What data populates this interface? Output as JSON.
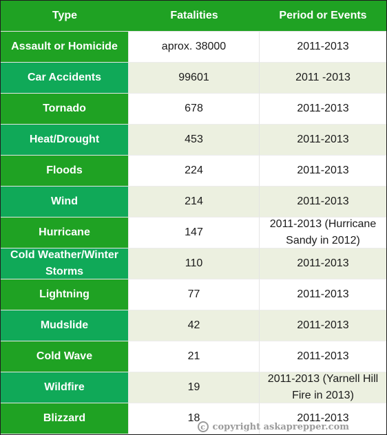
{
  "table": {
    "headers": [
      "Type",
      "Fatalities",
      "Period or Events"
    ],
    "rows": [
      {
        "type": "Assault or Homicide",
        "fatalities": "aprox. 38000",
        "period": "2011-2013"
      },
      {
        "type": "Car Accidents",
        "fatalities": "99601",
        "period": "2011 -2013"
      },
      {
        "type": "Tornado",
        "fatalities": "678",
        "period": "2011-2013"
      },
      {
        "type": "Heat/Drought",
        "fatalities": "453",
        "period": "2011-2013"
      },
      {
        "type": "Floods",
        "fatalities": "224",
        "period": "2011-2013"
      },
      {
        "type": "Wind",
        "fatalities": "214",
        "period": "2011-2013"
      },
      {
        "type": "Hurricane",
        "fatalities": "147",
        "period": "2011-2013 (Hurricane Sandy in 2012)"
      },
      {
        "type": "Cold Weather/Winter Storms",
        "fatalities": "110",
        "period": "2011-2013"
      },
      {
        "type": "Lightning",
        "fatalities": "77",
        "period": "2011-2013"
      },
      {
        "type": "Mudslide",
        "fatalities": "42",
        "period": "2011-2013"
      },
      {
        "type": "Cold Wave",
        "fatalities": "21",
        "period": "2011-2013"
      },
      {
        "type": "Wildfire",
        "fatalities": "19",
        "period": "2011-2013 (Yarnell Hill Fire in 2013)"
      },
      {
        "type": "Blizzard",
        "fatalities": "18",
        "period": "2011-2013"
      }
    ]
  },
  "watermark": {
    "symbol": "c",
    "text": "copyright askaprepper.com"
  },
  "colors": {
    "header_bg": "#1fa223",
    "type_bg_odd": "#1fa223",
    "type_bg_even": "#10a958",
    "row_bg_even": "#ecf0e0"
  }
}
